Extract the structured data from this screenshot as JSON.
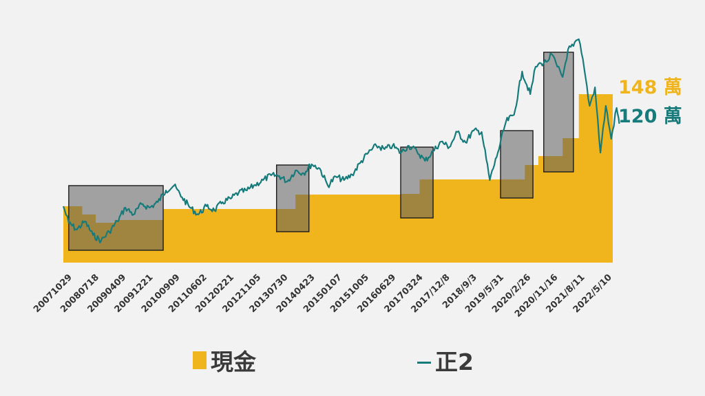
{
  "chart_data": {
    "type": "area",
    "x_ticks": [
      "20071029",
      "20080718",
      "20090409",
      "20091221",
      "20100909",
      "20110602",
      "20120221",
      "20121105",
      "20130730",
      "20140423",
      "20150107",
      "20151005",
      "20160629",
      "20170324",
      "2017/12/8",
      "2018/9/3",
      "2019/5/31",
      "2020/2/26",
      "2020/11/16",
      "2021/8/11",
      "2022/5/10"
    ],
    "ylim": [
      0,
      340
    ],
    "series": [
      {
        "name": "現金",
        "kind": "step-area",
        "color": "#f0b41c",
        "x": [
          0,
          0.7,
          1.2,
          1.9,
          3.7,
          7.9,
          8.6,
          11.2,
          12.5,
          13.2,
          15.5,
          17.1,
          17.6,
          18.5,
          19.1,
          20.6
        ],
        "values": [
          82,
          70,
          58,
          62,
          78,
          78,
          99,
          99,
          100,
          121,
          121,
          142,
          155,
          181,
          245,
          245
        ],
        "end_label": "148 萬"
      },
      {
        "name": "正2",
        "kind": "line",
        "color": "#187b7b",
        "x": [
          0,
          0.2,
          0.5,
          0.8,
          1.1,
          1.4,
          1.7,
          2.0,
          2.3,
          2.6,
          2.9,
          3.2,
          3.5,
          3.8,
          4.1,
          4.4,
          4.7,
          5.0,
          5.3,
          5.6,
          5.9,
          6.2,
          6.5,
          6.8,
          7.1,
          7.4,
          7.7,
          8.0,
          8.3,
          8.6,
          8.9,
          9.2,
          9.5,
          9.8,
          10.1,
          10.4,
          10.7,
          11.0,
          11.3,
          11.6,
          11.9,
          12.2,
          12.5,
          12.8,
          13.1,
          13.4,
          13.7,
          14.0,
          14.3,
          14.6,
          14.9,
          15.2,
          15.5,
          15.8,
          16.1,
          16.4,
          16.7,
          17.0,
          17.3,
          17.5,
          17.7,
          17.9,
          18.1,
          18.3,
          18.5,
          18.7,
          18.9,
          19.1,
          19.3,
          19.5,
          19.7,
          19.9,
          20.1,
          20.3,
          20.5,
          20.6
        ],
        "values": [
          82,
          58,
          48,
          60,
          40,
          32,
          45,
          60,
          80,
          70,
          85,
          80,
          88,
          105,
          112,
          95,
          80,
          70,
          82,
          76,
          88,
          93,
          102,
          105,
          113,
          120,
          127,
          126,
          118,
          134,
          130,
          143,
          137,
          112,
          125,
          120,
          128,
          145,
          160,
          170,
          165,
          170,
          160,
          170,
          162,
          148,
          162,
          176,
          168,
          190,
          175,
          192,
          190,
          120,
          160,
          205,
          215,
          278,
          245,
          285,
          290,
          292,
          303,
          285,
          270,
          310,
          315,
          325,
          282,
          228,
          255,
          160,
          228,
          180,
          225,
          202
        ],
        "end_label": "120 萬"
      }
    ],
    "highlight_boxes": [
      {
        "x_start": 0.2,
        "x_end": 3.7,
        "y_low": 18,
        "y_high": 112
      },
      {
        "x_start": 7.9,
        "x_end": 9.1,
        "y_low": 45,
        "y_high": 142
      },
      {
        "x_start": 12.5,
        "x_end": 13.7,
        "y_low": 65,
        "y_high": 168
      },
      {
        "x_start": 16.2,
        "x_end": 17.4,
        "y_low": 94,
        "y_high": 192
      },
      {
        "x_start": 17.8,
        "x_end": 18.9,
        "y_low": 132,
        "y_high": 306
      }
    ]
  }
}
